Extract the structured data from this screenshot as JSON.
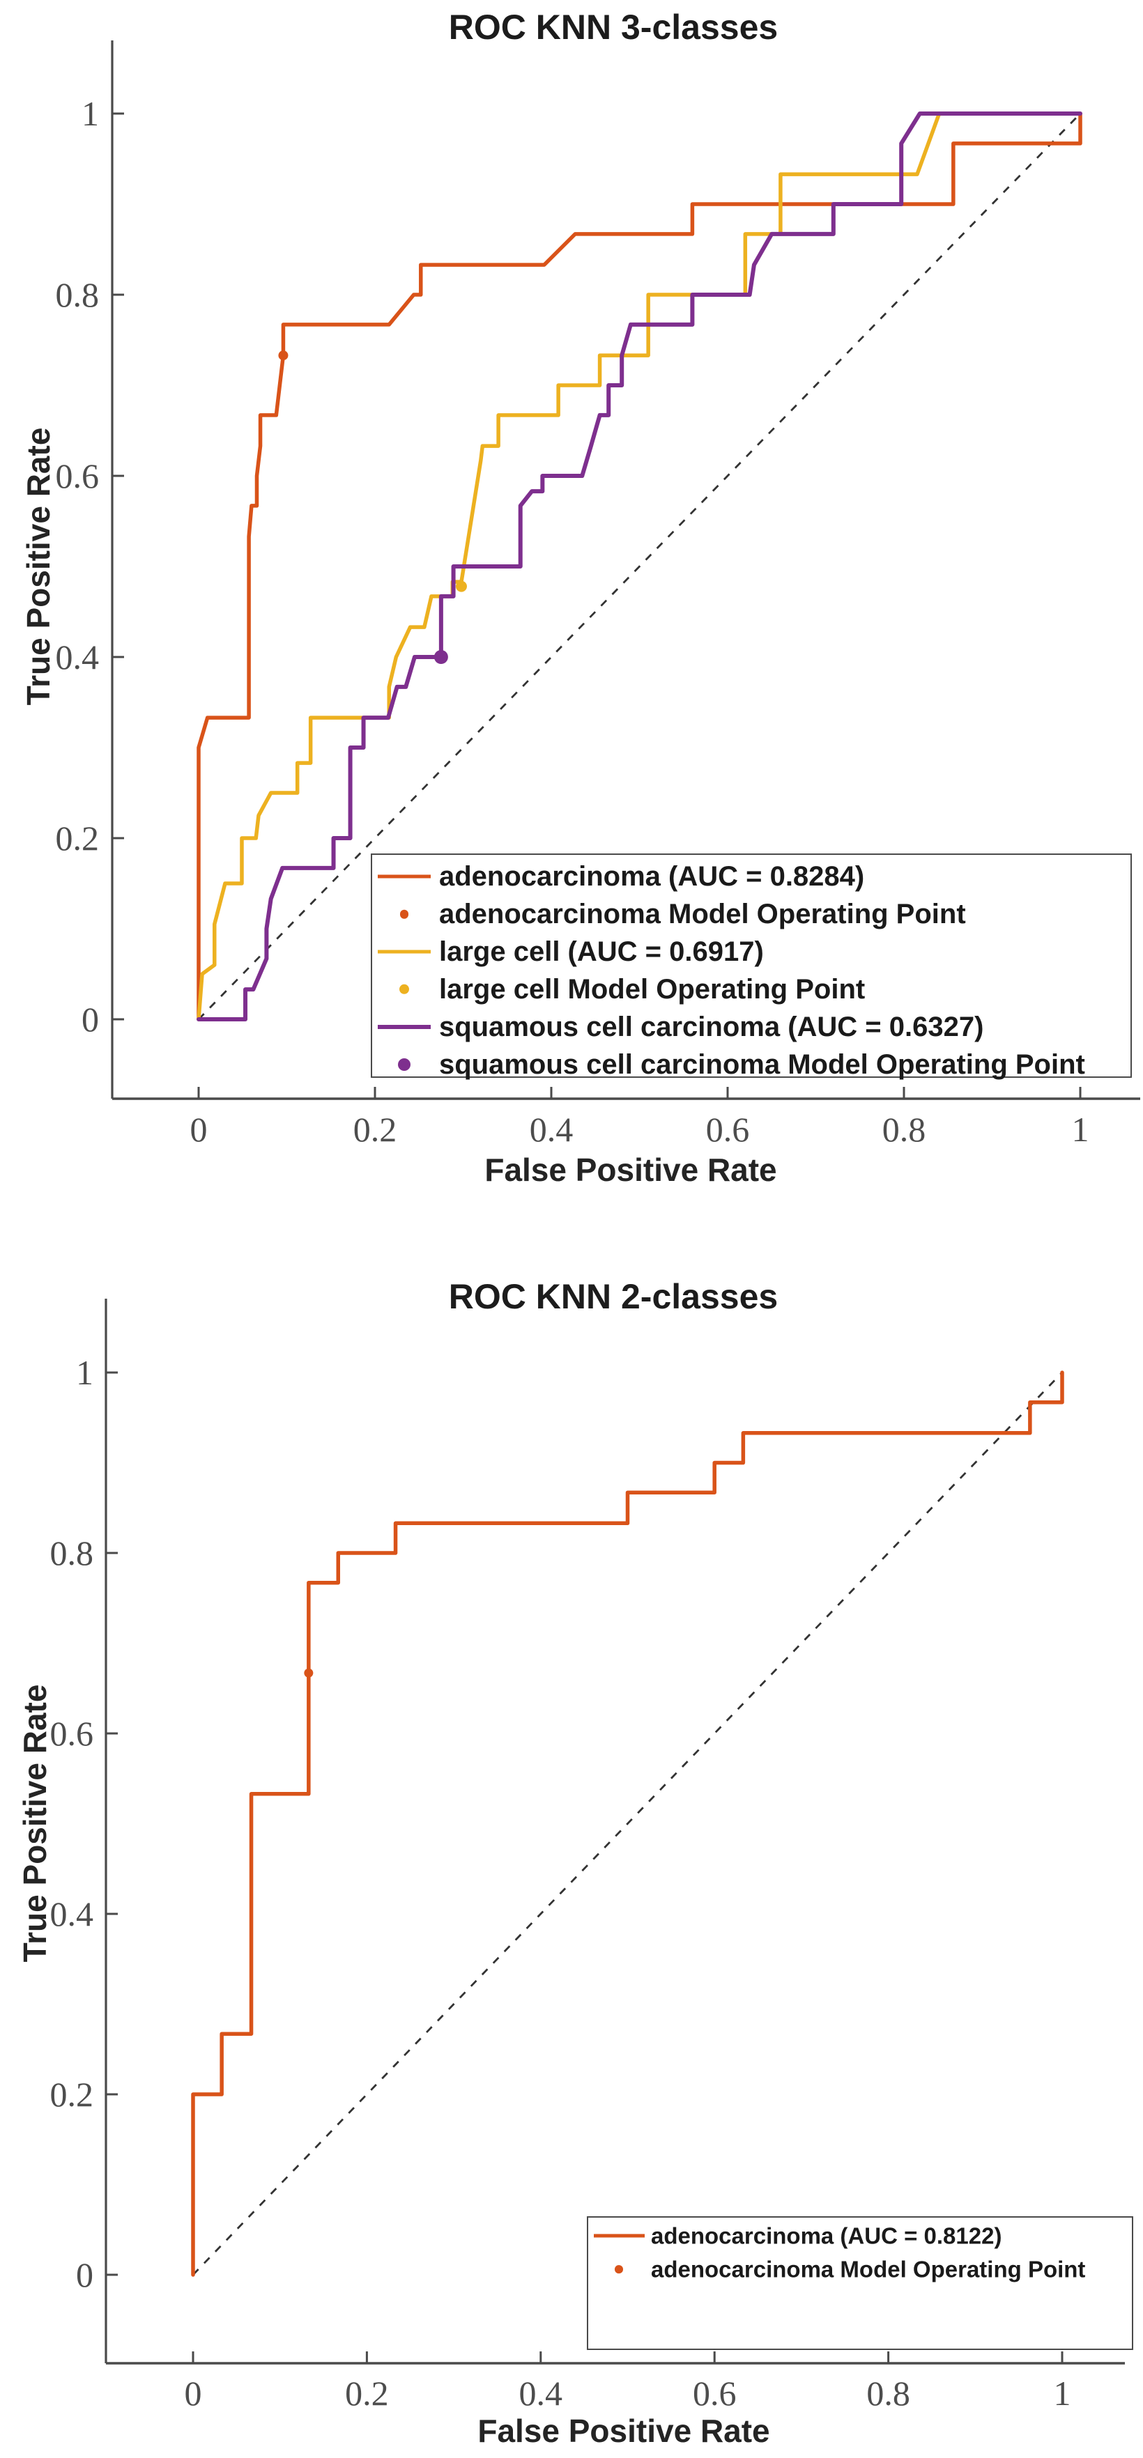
{
  "figure_kind": "MATLAB ROC curve figures, stacked vertically",
  "colors": {
    "adenocarcinoma": "#D95319",
    "large_cell": "#EDB120",
    "squamous_cell_carcinoma": "#7E2F8E",
    "axis": "#4a4a4a",
    "diagonal_reference": "#333333",
    "tick_label": "#4d4d4d",
    "background": "#ffffff"
  },
  "chart_data": [
    {
      "type": "line",
      "title": "ROC KNN 3-classes",
      "xlabel": "False Positive Rate",
      "ylabel": "True Positive Rate",
      "xlim": [
        0,
        1
      ],
      "ylim": [
        0,
        1
      ],
      "grid": false,
      "diagonal_reference": true,
      "legend_position": "lower right",
      "x_tick_values": [
        0,
        0.2,
        0.4,
        0.6,
        0.8,
        1
      ],
      "x_tick_labels": [
        "0",
        "0.2",
        "0.4",
        "0.6",
        "0.8",
        "1"
      ],
      "y_tick_values": [
        0,
        0.2,
        0.4,
        0.6,
        0.8,
        1
      ],
      "y_tick_labels": [
        "0",
        "0.2",
        "0.4",
        "0.6",
        "0.8",
        "1"
      ],
      "series": [
        {
          "name": "adenocarcinoma (AUC = 0.8284)",
          "class": "adenocarcinoma",
          "auc": 0.8284,
          "style": "curve",
          "color": "#D95319",
          "line_width": 5.5,
          "points": [
            [
              0,
              0
            ],
            [
              0,
              0.3
            ],
            [
              0.01,
              0.333
            ],
            [
              0.057,
              0.333
            ],
            [
              0.057,
              0.533
            ],
            [
              0.06,
              0.567
            ],
            [
              0.066,
              0.567
            ],
            [
              0.066,
              0.6
            ],
            [
              0.07,
              0.633
            ],
            [
              0.07,
              0.667
            ],
            [
              0.088,
              0.667
            ],
            [
              0.096,
              0.733
            ],
            [
              0.096,
              0.767
            ],
            [
              0.216,
              0.767
            ],
            [
              0.244,
              0.8
            ],
            [
              0.252,
              0.8
            ],
            [
              0.252,
              0.833
            ],
            [
              0.392,
              0.833
            ],
            [
              0.427,
              0.867
            ],
            [
              0.56,
              0.867
            ],
            [
              0.56,
              0.9
            ],
            [
              0.856,
              0.9
            ],
            [
              0.856,
              0.967
            ],
            [
              1,
              0.967
            ],
            [
              1,
              1
            ]
          ]
        },
        {
          "name": "adenocarcinoma Model Operating Point",
          "class": "adenocarcinoma",
          "style": "operating_point",
          "color": "#D95319",
          "marker_radius": 7,
          "point": [
            0.096,
            0.733
          ]
        },
        {
          "name": "large cell (AUC = 0.6917)",
          "class": "large_cell",
          "auc": 0.6917,
          "style": "curve",
          "color": "#EDB120",
          "line_width": 5.5,
          "points": [
            [
              0,
              0
            ],
            [
              0.004,
              0.05
            ],
            [
              0.018,
              0.06
            ],
            [
              0.018,
              0.105
            ],
            [
              0.03,
              0.15
            ],
            [
              0.049,
              0.15
            ],
            [
              0.049,
              0.2
            ],
            [
              0.065,
              0.2
            ],
            [
              0.068,
              0.225
            ],
            [
              0.082,
              0.25
            ],
            [
              0.112,
              0.25
            ],
            [
              0.112,
              0.283
            ],
            [
              0.127,
              0.283
            ],
            [
              0.127,
              0.333
            ],
            [
              0.216,
              0.333
            ],
            [
              0.216,
              0.367
            ],
            [
              0.224,
              0.4
            ],
            [
              0.24,
              0.433
            ],
            [
              0.256,
              0.433
            ],
            [
              0.264,
              0.467
            ],
            [
              0.288,
              0.467
            ],
            [
              0.288,
              0.483
            ],
            [
              0.298,
              0.483
            ],
            [
              0.32,
              0.617
            ],
            [
              0.322,
              0.633
            ],
            [
              0.34,
              0.633
            ],
            [
              0.34,
              0.667
            ],
            [
              0.408,
              0.667
            ],
            [
              0.408,
              0.7
            ],
            [
              0.455,
              0.7
            ],
            [
              0.455,
              0.733
            ],
            [
              0.51,
              0.733
            ],
            [
              0.51,
              0.8
            ],
            [
              0.62,
              0.8
            ],
            [
              0.62,
              0.867
            ],
            [
              0.66,
              0.867
            ],
            [
              0.66,
              0.933
            ],
            [
              0.815,
              0.933
            ],
            [
              0.84,
              1
            ],
            [
              1,
              1
            ]
          ]
        },
        {
          "name": "large cell Model Operating Point",
          "class": "large_cell",
          "style": "operating_point",
          "color": "#EDB120",
          "marker_radius": 8,
          "point": [
            0.298,
            0.478
          ]
        },
        {
          "name": "squamous cell carcinoma (AUC = 0.6327)",
          "class": "squamous_cell_carcinoma",
          "auc": 0.6327,
          "style": "curve",
          "color": "#7E2F8E",
          "line_width": 6,
          "points": [
            [
              0,
              0
            ],
            [
              0.053,
              0
            ],
            [
              0.053,
              0.033
            ],
            [
              0.062,
              0.033
            ],
            [
              0.077,
              0.067
            ],
            [
              0.077,
              0.1
            ],
            [
              0.082,
              0.133
            ],
            [
              0.095,
              0.167
            ],
            [
              0.153,
              0.167
            ],
            [
              0.153,
              0.2
            ],
            [
              0.172,
              0.2
            ],
            [
              0.172,
              0.3
            ],
            [
              0.187,
              0.3
            ],
            [
              0.187,
              0.333
            ],
            [
              0.215,
              0.333
            ],
            [
              0.225,
              0.367
            ],
            [
              0.235,
              0.367
            ],
            [
              0.245,
              0.4
            ],
            [
              0.275,
              0.4
            ],
            [
              0.275,
              0.467
            ],
            [
              0.289,
              0.467
            ],
            [
              0.289,
              0.5
            ],
            [
              0.365,
              0.5
            ],
            [
              0.365,
              0.567
            ],
            [
              0.378,
              0.583
            ],
            [
              0.39,
              0.583
            ],
            [
              0.39,
              0.6
            ],
            [
              0.435,
              0.6
            ],
            [
              0.445,
              0.633
            ],
            [
              0.455,
              0.667
            ],
            [
              0.465,
              0.667
            ],
            [
              0.465,
              0.7
            ],
            [
              0.48,
              0.7
            ],
            [
              0.48,
              0.733
            ],
            [
              0.49,
              0.767
            ],
            [
              0.56,
              0.767
            ],
            [
              0.56,
              0.8
            ],
            [
              0.625,
              0.8
            ],
            [
              0.63,
              0.833
            ],
            [
              0.65,
              0.867
            ],
            [
              0.72,
              0.867
            ],
            [
              0.72,
              0.9
            ],
            [
              0.797,
              0.9
            ],
            [
              0.797,
              0.967
            ],
            [
              0.818,
              1
            ],
            [
              1,
              1
            ]
          ]
        },
        {
          "name": "squamous cell carcinoma Model Operating Point",
          "class": "squamous_cell_carcinoma",
          "style": "operating_point",
          "color": "#7E2F8E",
          "marker_radius": 10,
          "point": [
            0.275,
            0.4
          ]
        }
      ]
    },
    {
      "type": "line",
      "title": "ROC KNN 2-classes",
      "xlabel": "False Positive Rate",
      "ylabel": "True Positive Rate",
      "xlim": [
        0,
        1
      ],
      "ylim": [
        0,
        1
      ],
      "grid": false,
      "diagonal_reference": true,
      "legend_position": "lower right",
      "x_tick_values": [
        0,
        0.2,
        0.4,
        0.6,
        0.8,
        1
      ],
      "x_tick_labels": [
        "0",
        "0.2",
        "0.4",
        "0.6",
        "0.8",
        "1"
      ],
      "y_tick_values": [
        0,
        0.2,
        0.4,
        0.6,
        0.8,
        1
      ],
      "y_tick_labels": [
        "0",
        "0.2",
        "0.4",
        "0.6",
        "0.8",
        "1"
      ],
      "series": [
        {
          "name": "adenocarcinoma (AUC = 0.8122)",
          "class": "adenocarcinoma",
          "auc": 0.8122,
          "style": "curve",
          "color": "#D95319",
          "line_width": 5.5,
          "points": [
            [
              0,
              0
            ],
            [
              0,
              0.2
            ],
            [
              0.033,
              0.2
            ],
            [
              0.033,
              0.267
            ],
            [
              0.067,
              0.267
            ],
            [
              0.067,
              0.533
            ],
            [
              0.133,
              0.533
            ],
            [
              0.133,
              0.767
            ],
            [
              0.167,
              0.767
            ],
            [
              0.167,
              0.8
            ],
            [
              0.233,
              0.8
            ],
            [
              0.233,
              0.833
            ],
            [
              0.5,
              0.833
            ],
            [
              0.5,
              0.867
            ],
            [
              0.6,
              0.867
            ],
            [
              0.6,
              0.9
            ],
            [
              0.633,
              0.9
            ],
            [
              0.633,
              0.933
            ],
            [
              0.963,
              0.933
            ],
            [
              0.963,
              0.967
            ],
            [
              1,
              0.967
            ],
            [
              1,
              1
            ]
          ]
        },
        {
          "name": "adenocarcinoma Model Operating Point",
          "class": "adenocarcinoma",
          "style": "operating_point",
          "color": "#D95319",
          "marker_radius": 6.5,
          "point": [
            0.133,
            0.667
          ]
        }
      ]
    }
  ]
}
